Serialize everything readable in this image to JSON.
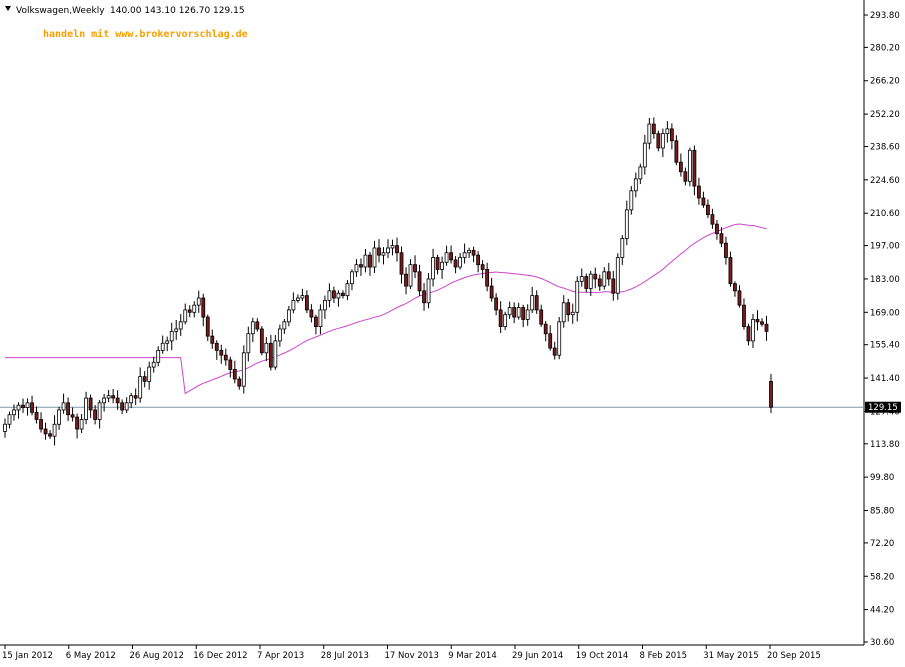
{
  "header": {
    "symbol": "Volkswagen,Weekly",
    "ohlc_text": "140.00 143.10 126.70 129.15",
    "promo": "handeln mit www.brokervorschlag.de"
  },
  "colors": {
    "background": "#ffffff",
    "up_fill": "#ffffff",
    "down_fill": "#7a1a1a",
    "candle_outline": "#000000",
    "moving_average": "#cc44cc",
    "price_line": "#7a9aaa",
    "promo": "#f5a000"
  },
  "chart_data": {
    "type": "candlestick",
    "title": "Volkswagen,Weekly",
    "x_ticks": [
      "15 Jan 2012",
      "6 May 2012",
      "26 Aug 2012",
      "16 Dec 2012",
      "7 Apr 2013",
      "28 Jul 2013",
      "17 Nov 2013",
      "9 Mar 2014",
      "29 Jun 2014",
      "19 Oct 2014",
      "8 Feb 2015",
      "31 May 2015",
      "20 Sep 2015"
    ],
    "y_ticks": [
      "293.80",
      "280.20",
      "266.20",
      "252.20",
      "238.60",
      "224.60",
      "210.60",
      "197.00",
      "183.00",
      "169.00",
      "155.40",
      "141.40",
      "127.40",
      "113.80",
      "99.80",
      "85.80",
      "72.20",
      "58.20",
      "44.20",
      "30.60"
    ],
    "ylim": [
      30.6,
      293.8
    ],
    "last_price": 129.15,
    "last_price_label": "129.15",
    "last_candle": {
      "open": 140.0,
      "high": 143.1,
      "low": 126.7,
      "close": 129.15
    },
    "close_series": [
      122,
      126,
      128,
      130,
      129,
      131,
      127,
      124,
      120,
      118,
      117,
      122,
      128,
      131,
      126,
      125,
      120,
      124,
      133,
      128,
      124,
      131,
      133,
      134,
      133,
      131,
      128,
      131,
      134,
      133,
      142,
      140,
      146,
      148,
      153,
      156,
      157,
      161,
      162,
      165,
      170,
      169,
      172,
      175,
      167,
      159,
      156,
      153,
      151,
      149,
      145,
      141,
      138,
      152,
      160,
      165,
      162,
      152,
      156,
      146,
      157,
      162,
      165,
      170,
      174,
      175,
      176,
      170,
      167,
      163,
      170,
      174,
      178,
      175,
      177,
      176,
      181,
      186,
      189,
      188,
      193,
      188,
      196,
      193,
      194,
      196,
      197,
      194,
      185,
      180,
      189,
      186,
      178,
      173,
      183,
      192,
      187,
      190,
      194,
      191,
      188,
      192,
      194,
      195,
      193,
      189,
      187,
      180,
      175,
      170,
      163,
      168,
      171,
      167,
      171,
      166,
      170,
      176,
      170,
      164,
      160,
      154,
      151,
      165,
      173,
      168,
      169,
      182,
      184,
      179,
      185,
      183,
      180,
      186,
      183,
      177,
      192,
      200,
      212,
      220,
      225,
      230,
      240,
      248,
      244,
      238,
      244,
      246,
      241,
      232,
      228,
      224,
      237,
      222,
      217,
      214,
      210,
      206,
      202,
      198,
      192,
      181,
      178,
      172,
      163,
      157,
      166,
      165,
      164,
      161,
      129
    ]
  }
}
